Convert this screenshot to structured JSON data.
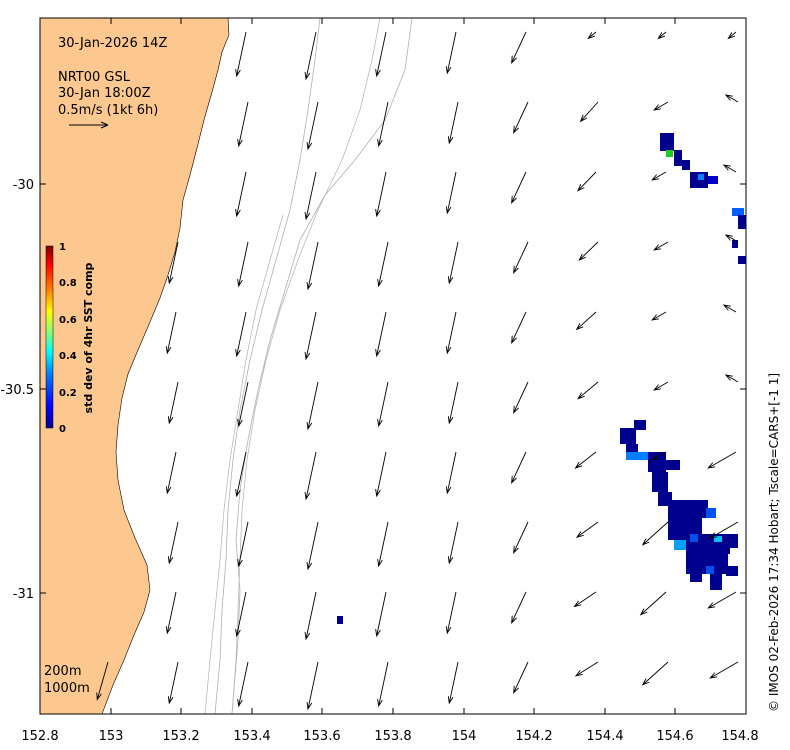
{
  "header": {
    "timestamp": "30-Jan-2026 14Z",
    "source_line1": "NRT00 GSL",
    "source_line2": "30-Jan 18:00Z",
    "scale_label": "0.5m/s (1kt 6h)"
  },
  "axes": {
    "x_ticks": [
      "152.8",
      "153",
      "153.2",
      "153.4",
      "153.6",
      "153.8",
      "154",
      "154.2",
      "154.4",
      "154.6",
      "154.8"
    ],
    "y_ticks": [
      "-30",
      "-30.5",
      "-31"
    ]
  },
  "colorbar": {
    "label": "std dev of 4hr SST comp",
    "ticks": [
      "1",
      "0.8",
      "0.6",
      "0.4",
      "0.2",
      "0"
    ],
    "colors": [
      "#00008f",
      "#0000ff",
      "#0080ff",
      "#00ffff",
      "#80ff80",
      "#ffff00",
      "#ff8000",
      "#ff0000",
      "#800000"
    ]
  },
  "bathymetry_labels": {
    "depth_200": "200m",
    "depth_1000": "1000m"
  },
  "credit": "© IMOS 02-Feb-2026 17:34 Hobart; Tscale=CARS+[-1 1]",
  "colors": {
    "land": "#fdc890",
    "contour": "#b0b0b0",
    "arrow": "#000000"
  }
}
